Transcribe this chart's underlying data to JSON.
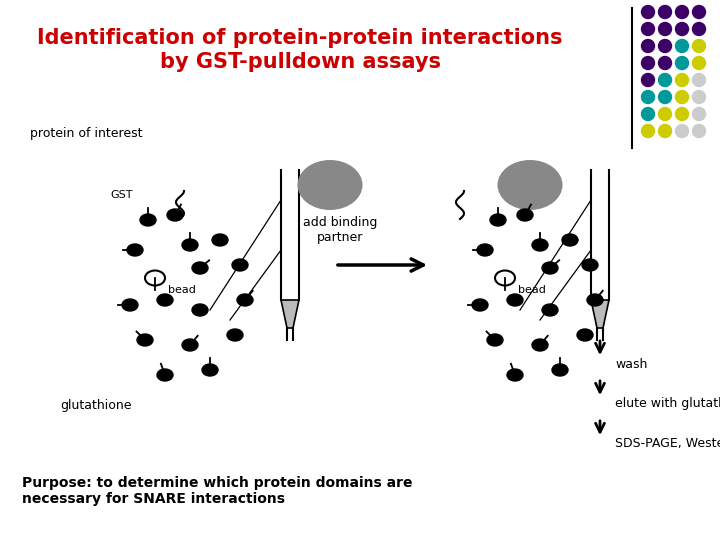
{
  "title_line1": "Identification of protein-protein interactions",
  "title_line2": "by GST-pulldown assays",
  "title_color": "#cc0000",
  "title_fontsize": 15,
  "bg_color": "#ffffff",
  "label_protein_of_interest": "protein of interest",
  "label_gst": "GST",
  "label_bead1": "bead",
  "label_bead2": "bead",
  "label_glutathione": "glutathione",
  "label_add_binding_partner": "add binding\npartner",
  "label_wash": "wash",
  "label_elute": "elute with glutathione",
  "label_sds": "SDS-PAGE, Western blotting",
  "label_purpose": "Purpose: to determine which protein domains are\nnecessary for SNARE interactions",
  "dot_colors_row0": [
    "#3d0066",
    "#3d0066",
    "#3d0066",
    "#3d0066"
  ],
  "dot_colors_row1": [
    "#3d0066",
    "#3d0066",
    "#3d0066",
    "#3d0066"
  ],
  "dot_colors_row2": [
    "#3d0066",
    "#3d0066",
    "#009999",
    "#cccc00"
  ],
  "dot_colors_row3": [
    "#3d0066",
    "#3d0066",
    "#009999",
    "#cccc00"
  ],
  "dot_colors_row4": [
    "#3d0066",
    "#009999",
    "#cccc00",
    "#cccccc"
  ],
  "dot_colors_row5": [
    "#009999",
    "#009999",
    "#cccc00",
    "#cccccc"
  ],
  "dot_colors_row6": [
    "#009999",
    "#cccc00",
    "#cccc00",
    "#cccccc"
  ],
  "dot_colors_row7": [
    "#cccc00",
    "#cccc00",
    "#cccccc",
    "#cccccc"
  ]
}
